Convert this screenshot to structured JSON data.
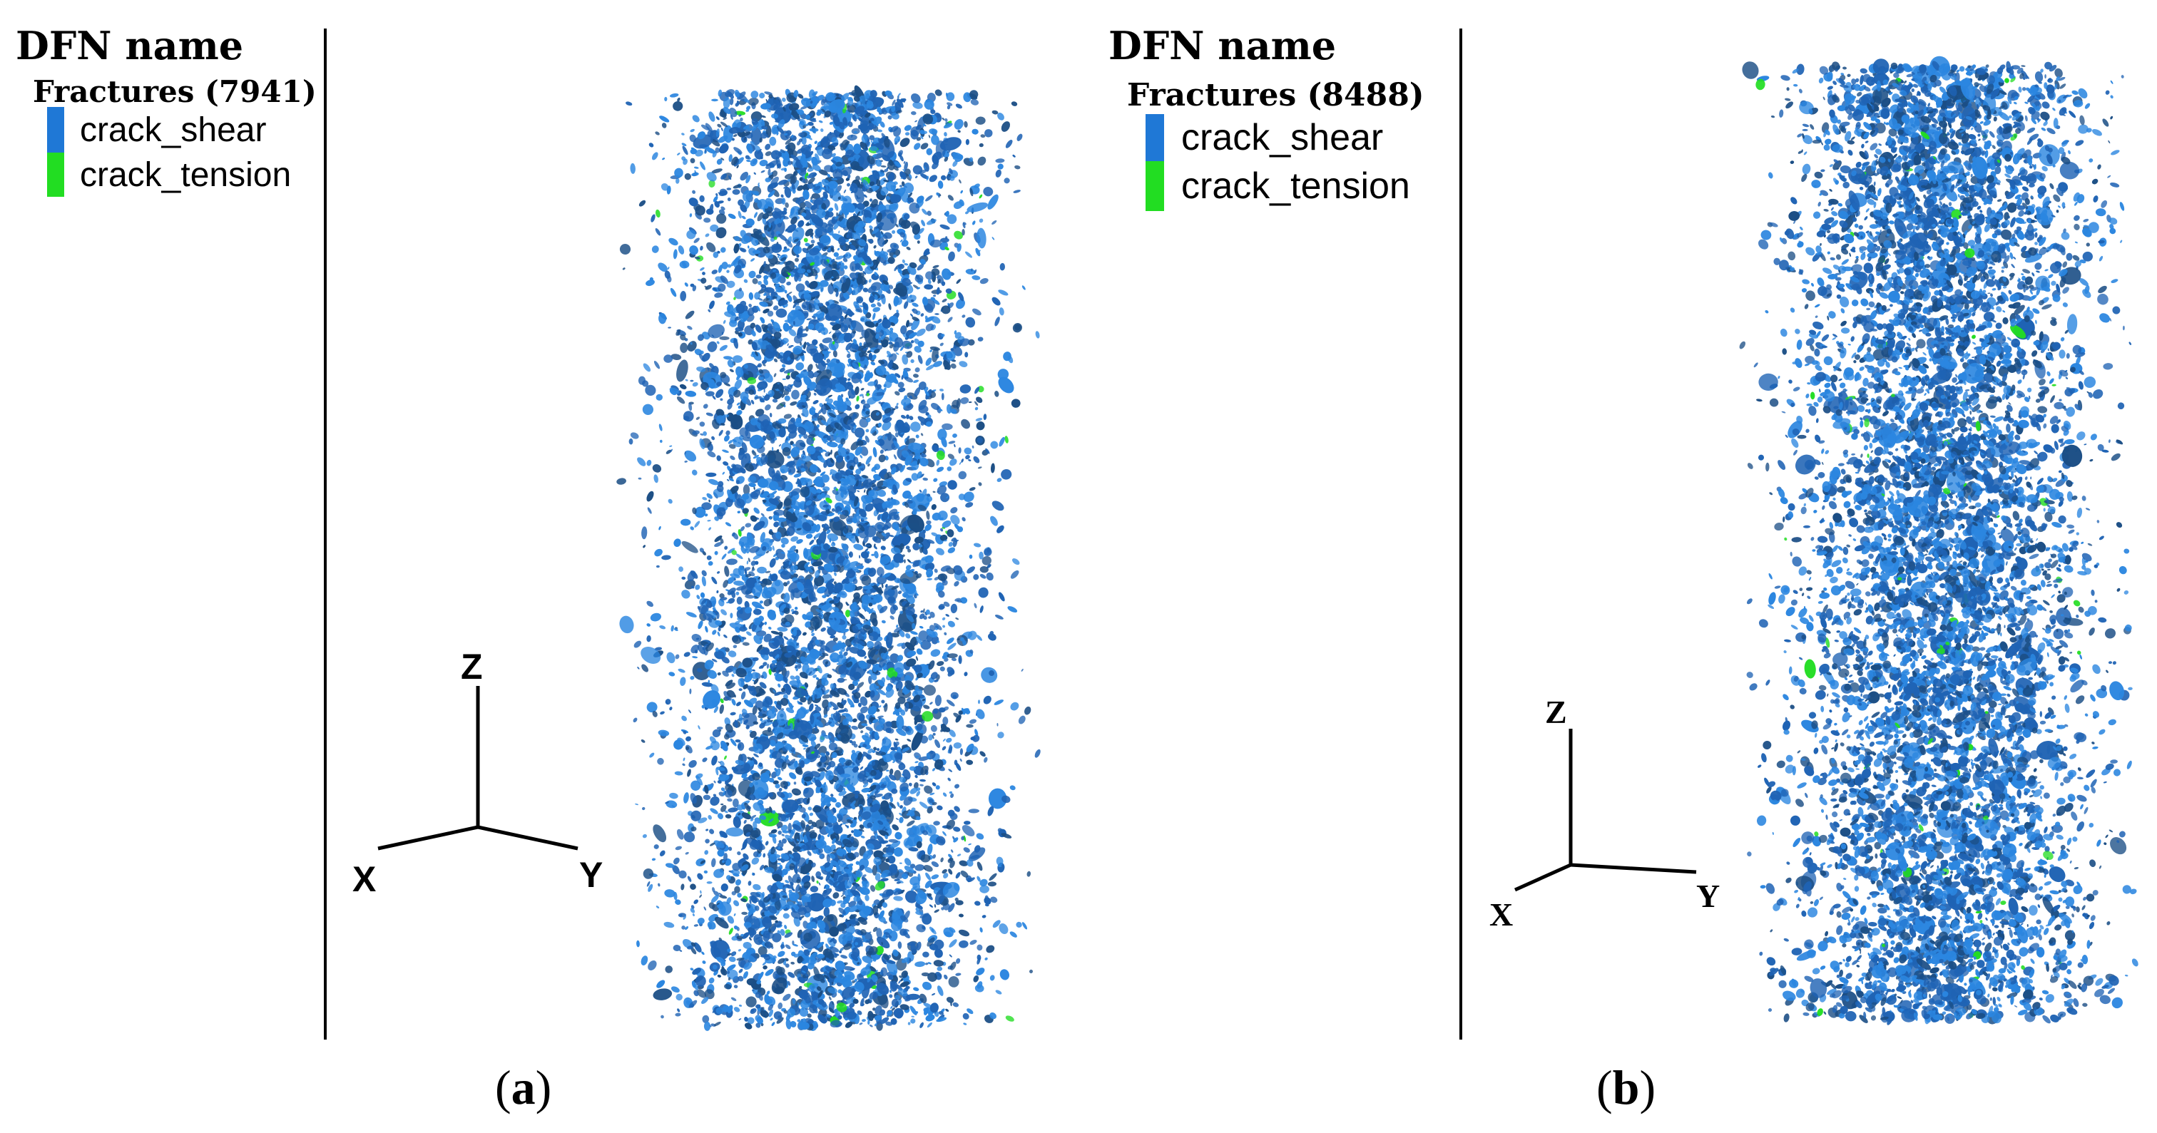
{
  "panels": [
    {
      "legend": {
        "title": "DFN name",
        "subtitle": "Fractures (7941)",
        "entries": [
          {
            "label": "crack_shear",
            "color": "#1f78d6"
          },
          {
            "label": "crack_tension",
            "color": "#22dd22"
          }
        ]
      },
      "axes": {
        "z": "Z",
        "x": "X",
        "y": "Y"
      },
      "caption": {
        "open": "(",
        "letter": "a",
        "close": ")"
      }
    },
    {
      "legend": {
        "title": "DFN name",
        "subtitle": "Fractures (8488)",
        "entries": [
          {
            "label": "crack_shear",
            "color": "#1f78d6"
          },
          {
            "label": "crack_tension",
            "color": "#22dd22"
          }
        ]
      },
      "axes": {
        "z": "Z",
        "x": "X",
        "y": "Y"
      },
      "caption": {
        "open": "(",
        "letter": "b",
        "close": ")"
      }
    }
  ],
  "colors": {
    "shear_dark": "#1b4e85",
    "shear_mid": "#1f63b4",
    "shear_light": "#2b86e0",
    "tension": "#22dd22"
  }
}
